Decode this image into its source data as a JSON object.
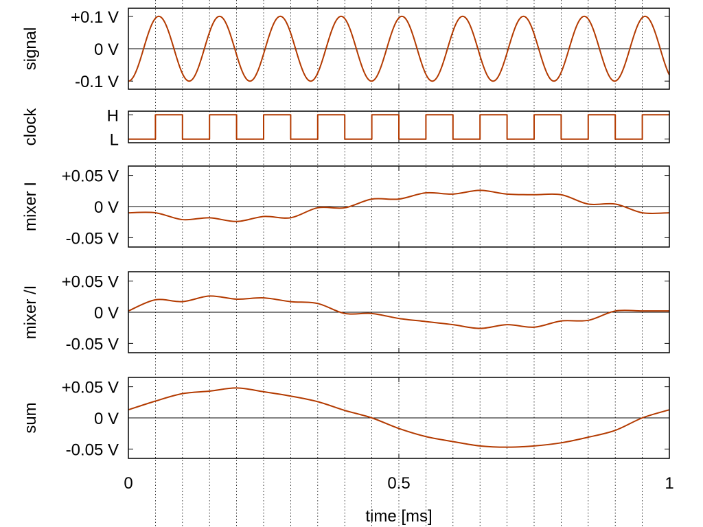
{
  "chart_data": {
    "type": "line",
    "xlabel": "time [ms]",
    "xlim": [
      0,
      1
    ],
    "x_ticks": [
      {
        "value": 0,
        "label": "0"
      },
      {
        "value": 0.5,
        "label": "0.5"
      },
      {
        "value": 1,
        "label": "1"
      }
    ],
    "clock_period_ms": 0.1,
    "clock_first_high_ms": 0.05,
    "colors": {
      "trace": "#b33a00",
      "zero_line": "#000000",
      "grid": "#000000"
    },
    "grid": "vertical dotted lines at clock edges",
    "panels": [
      {
        "id": "signal",
        "ylabel": "signal",
        "ylim": [
          -0.125,
          0.125
        ],
        "y_ticks": [
          {
            "value": 0.1,
            "label": "+0.1 V"
          },
          {
            "value": 0,
            "label": "0 V"
          },
          {
            "value": -0.1,
            "label": "-0.1 V"
          }
        ],
        "zero_line": true,
        "series": {
          "kind": "sine",
          "amplitude": 0.1,
          "frequency_khz": 8.9,
          "phase_deg": -90
        }
      },
      {
        "id": "clock",
        "ylabel": "clock",
        "ylim": [
          -0.15,
          1.15
        ],
        "y_ticks": [
          {
            "value": 1,
            "label": "H"
          },
          {
            "value": 0,
            "label": "L"
          }
        ],
        "zero_line": false,
        "series": {
          "kind": "square",
          "period_ms": 0.1,
          "first_high_ms": 0.05
        }
      },
      {
        "id": "mixer_i",
        "ylabel": "mixer I",
        "ylim": [
          -0.065,
          0.065
        ],
        "y_ticks": [
          {
            "value": 0.05,
            "label": "+0.05 V"
          },
          {
            "value": 0,
            "label": "0 V"
          },
          {
            "value": -0.05,
            "label": "-0.05 V"
          }
        ],
        "zero_line": true,
        "series": {
          "kind": "points",
          "x": [
            0,
            0.05,
            0.1,
            0.15,
            0.2,
            0.25,
            0.3,
            0.35,
            0.4,
            0.45,
            0.5,
            0.55,
            0.6,
            0.65,
            0.7,
            0.75,
            0.8,
            0.85,
            0.9,
            0.95,
            1.0
          ],
          "y": [
            -0.01,
            -0.01,
            -0.021,
            -0.018,
            -0.024,
            -0.016,
            -0.018,
            -0.002,
            -0.002,
            0.012,
            0.012,
            0.022,
            0.02,
            0.026,
            0.02,
            0.019,
            0.019,
            0.004,
            0.004,
            -0.01,
            -0.01
          ]
        }
      },
      {
        "id": "mixer_ni",
        "ylabel": "mixer /I",
        "ylim": [
          -0.065,
          0.065
        ],
        "y_ticks": [
          {
            "value": 0.05,
            "label": "+0.05 V"
          },
          {
            "value": 0,
            "label": "0 V"
          },
          {
            "value": -0.05,
            "label": "-0.05 V"
          }
        ],
        "zero_line": true,
        "series": {
          "kind": "points",
          "x": [
            0,
            0.05,
            0.1,
            0.15,
            0.2,
            0.25,
            0.3,
            0.35,
            0.4,
            0.45,
            0.5,
            0.55,
            0.6,
            0.65,
            0.7,
            0.75,
            0.8,
            0.85,
            0.9,
            0.95,
            1.0
          ],
          "y": [
            0.002,
            0.02,
            0.017,
            0.026,
            0.021,
            0.023,
            0.017,
            0.014,
            -0.002,
            -0.002,
            -0.01,
            -0.015,
            -0.02,
            -0.026,
            -0.02,
            -0.024,
            -0.014,
            -0.013,
            0.002,
            0.002,
            0.002
          ]
        }
      },
      {
        "id": "sum",
        "ylabel": "sum",
        "ylim": [
          -0.065,
          0.065
        ],
        "y_ticks": [
          {
            "value": 0.05,
            "label": "+0.05 V"
          },
          {
            "value": 0,
            "label": "0 V"
          },
          {
            "value": -0.05,
            "label": "-0.05 V"
          }
        ],
        "zero_line": true,
        "series": {
          "kind": "points",
          "x": [
            0,
            0.05,
            0.1,
            0.15,
            0.2,
            0.25,
            0.3,
            0.35,
            0.4,
            0.45,
            0.5,
            0.55,
            0.6,
            0.65,
            0.7,
            0.75,
            0.8,
            0.85,
            0.9,
            0.95,
            1.0
          ],
          "y": [
            0.013,
            0.027,
            0.039,
            0.043,
            0.048,
            0.042,
            0.035,
            0.026,
            0.012,
            0.0,
            -0.017,
            -0.03,
            -0.038,
            -0.045,
            -0.047,
            -0.045,
            -0.04,
            -0.031,
            -0.02,
            0.0,
            0.013
          ]
        }
      }
    ]
  }
}
